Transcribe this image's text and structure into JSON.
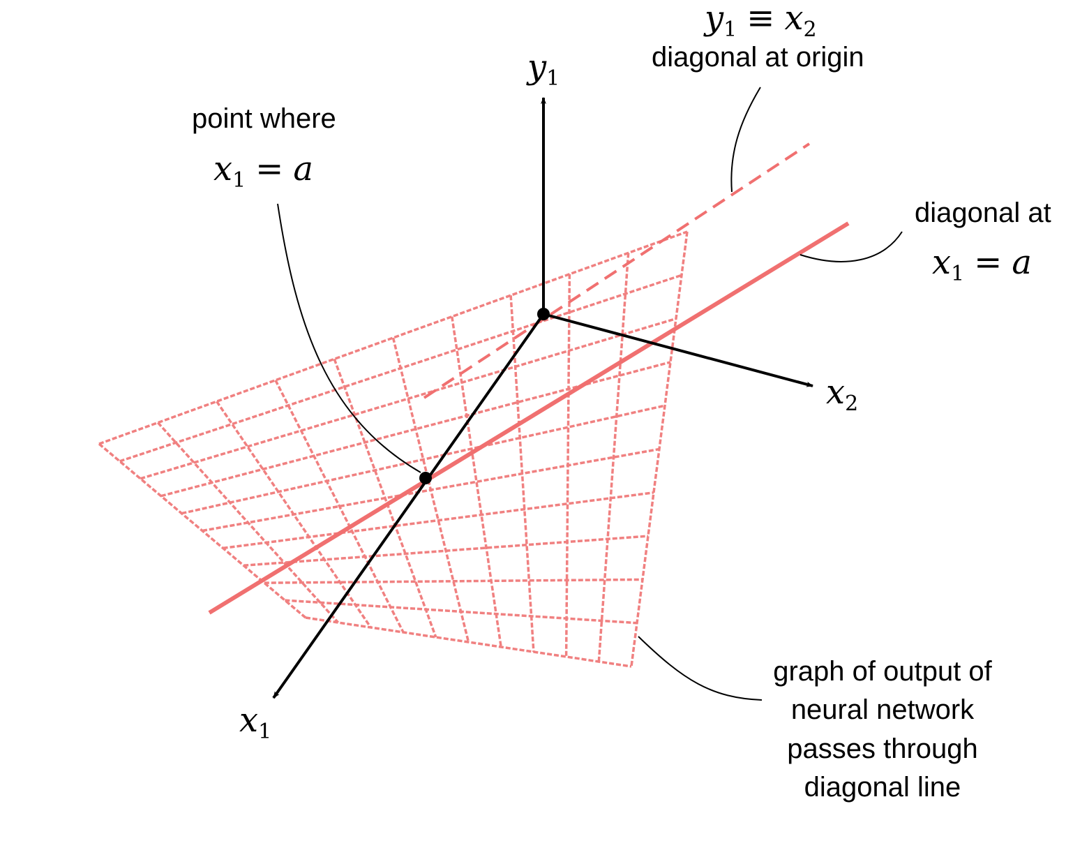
{
  "axes": {
    "y1": {
      "var": "y",
      "sub": "1"
    },
    "x2": {
      "var": "x",
      "sub": "2"
    },
    "x1": {
      "var": "x",
      "sub": "1"
    }
  },
  "annotations": {
    "identity": {
      "lhs_var": "y",
      "lhs_sub": "1",
      "op": "≡",
      "rhs_var": "x",
      "rhs_sub": "2"
    },
    "diagonal_origin": "diagonal at origin",
    "point_where": "point where",
    "point_eq": {
      "lhs_var": "x",
      "lhs_sub": "1",
      "op": "=",
      "rhs": "a"
    },
    "diagonal_at": "diagonal at",
    "diagonal_eq": {
      "lhs_var": "x",
      "lhs_sub": "1",
      "op": "=",
      "rhs": "a"
    },
    "graph_caption": [
      "graph of output of",
      "neural network",
      "passes through",
      "diagonal line"
    ]
  },
  "colors": {
    "axis": "#000000",
    "surface": "#f08080",
    "surface_dark": "#e64545",
    "diagonal": "#f07070",
    "leader": "#000000"
  }
}
